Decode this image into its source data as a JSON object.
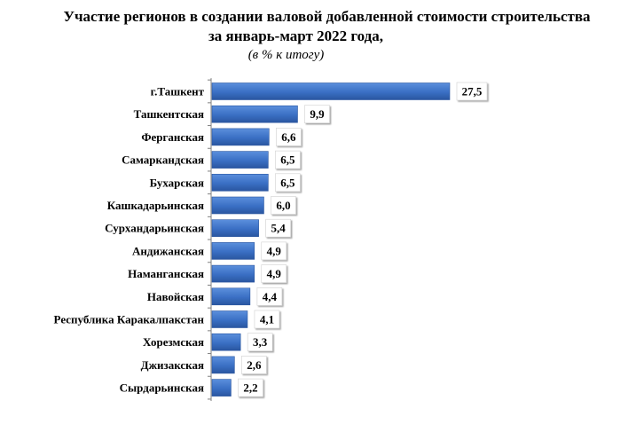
{
  "chart_data": {
    "type": "bar",
    "orientation": "horizontal",
    "title": "Участие регионов в создании валовой добавленной стоимости строительства",
    "title_line2": "за январь-март 2022 года,",
    "subtitle": "(в % к итогу)",
    "categories": [
      "г.Ташкент",
      "Ташкентская",
      "Ферганская",
      "Самаркандская",
      "Бухарская",
      "Кашкадарьинская",
      "Сурхандарьинская",
      "Андижанская",
      "Наманганская",
      "Навойская",
      "Республика Каракалпакстан",
      "Хорезмская",
      "Джизакская",
      "Сырдарьинская"
    ],
    "values": [
      27.5,
      9.9,
      6.6,
      6.5,
      6.5,
      6.0,
      5.4,
      4.9,
      4.9,
      4.4,
      4.1,
      3.3,
      2.6,
      2.2
    ],
    "value_labels": [
      "27,5",
      "9,9",
      "6,6",
      "6,5",
      "6,5",
      "6,0",
      "5,4",
      "4,9",
      "4,9",
      "4,4",
      "4,1",
      "3,3",
      "2,6",
      "2,2"
    ],
    "xlim": [
      0,
      30
    ],
    "grid": false,
    "bar_color": "#3a6fc4",
    "bar_color_dark": "#2a56a0"
  }
}
